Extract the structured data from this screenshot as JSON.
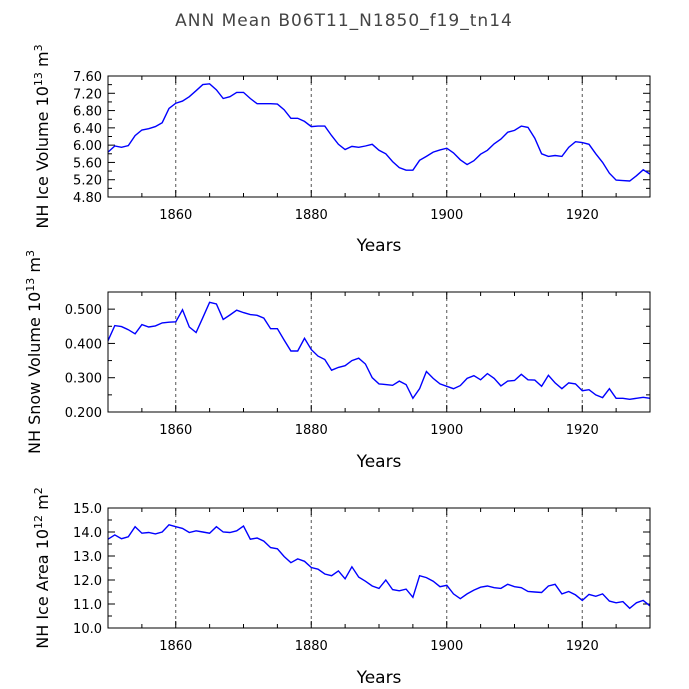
{
  "title": "ANN Mean B06T11_N1850_f19_tn14",
  "chart_data": [
    {
      "type": "line",
      "xlabel": "Years",
      "ylabel_main": "NH Ice Volume 10",
      "ylabel_sup": "13",
      "ylabel_unit": " m",
      "ylabel_unit_sup": "3",
      "xlim": [
        1850,
        1930
      ],
      "ylim": [
        4.8,
        7.6
      ],
      "xticks": [
        1860,
        1880,
        1900,
        1920
      ],
      "yticks": [
        4.8,
        5.2,
        5.6,
        6.0,
        6.4,
        6.8,
        7.2,
        7.6
      ],
      "ytick_labels": [
        "4.80",
        "5.20",
        "5.60",
        "6.00",
        "6.40",
        "6.80",
        "7.20",
        "7.60"
      ],
      "grid": "vertical dashed at major x ticks",
      "series_color": "#0000ff",
      "x": [
        1850,
        1851,
        1852,
        1853,
        1854,
        1855,
        1856,
        1857,
        1858,
        1859,
        1860,
        1861,
        1862,
        1863,
        1864,
        1865,
        1866,
        1867,
        1868,
        1869,
        1870,
        1871,
        1872,
        1873,
        1874,
        1875,
        1876,
        1877,
        1878,
        1879,
        1880,
        1881,
        1882,
        1883,
        1884,
        1885,
        1886,
        1887,
        1888,
        1889,
        1890,
        1891,
        1892,
        1893,
        1894,
        1895,
        1896,
        1897,
        1898,
        1899,
        1900,
        1901,
        1902,
        1903,
        1904,
        1905,
        1906,
        1907,
        1908,
        1909,
        1910,
        1911,
        1912,
        1913,
        1914,
        1915,
        1916,
        1917,
        1918,
        1919,
        1920,
        1921,
        1922,
        1923,
        1924,
        1925,
        1926,
        1927,
        1928,
        1929,
        1930
      ],
      "values": [
        5.84,
        5.98,
        5.95,
        5.99,
        6.22,
        6.35,
        6.38,
        6.43,
        6.52,
        6.85,
        6.97,
        7.02,
        7.12,
        7.26,
        7.4,
        7.42,
        7.28,
        7.08,
        7.12,
        7.22,
        7.22,
        7.08,
        6.96,
        6.96,
        6.96,
        6.95,
        6.82,
        6.62,
        6.62,
        6.55,
        6.43,
        6.44,
        6.44,
        6.22,
        6.02,
        5.9,
        5.97,
        5.95,
        5.98,
        6.02,
        5.88,
        5.8,
        5.62,
        5.48,
        5.42,
        5.42,
        5.65,
        5.74,
        5.84,
        5.89,
        5.93,
        5.82,
        5.66,
        5.55,
        5.64,
        5.79,
        5.88,
        6.03,
        6.14,
        6.3,
        6.34,
        6.44,
        6.41,
        6.16,
        5.8,
        5.74,
        5.76,
        5.74,
        5.95,
        6.08,
        6.06,
        6.02,
        5.8,
        5.6,
        5.35,
        5.19,
        5.18,
        5.17,
        5.29,
        5.43,
        5.33
      ]
    },
    {
      "type": "line",
      "xlabel": "Years",
      "ylabel_main": "NH Snow Volume 10",
      "ylabel_sup": "13",
      "ylabel_unit": " m",
      "ylabel_unit_sup": "3",
      "xlim": [
        1850,
        1930
      ],
      "ylim": [
        0.2,
        0.55
      ],
      "xticks": [
        1860,
        1880,
        1900,
        1920
      ],
      "yticks": [
        0.2,
        0.3,
        0.4,
        0.5
      ],
      "ytick_labels": [
        "0.200",
        "0.300",
        "0.400",
        "0.500"
      ],
      "grid": "vertical dashed at major x ticks",
      "series_color": "#0000ff",
      "x": [
        1850,
        1851,
        1852,
        1853,
        1854,
        1855,
        1856,
        1857,
        1858,
        1859,
        1860,
        1861,
        1862,
        1863,
        1864,
        1865,
        1866,
        1867,
        1868,
        1869,
        1870,
        1871,
        1872,
        1873,
        1874,
        1875,
        1876,
        1877,
        1878,
        1879,
        1880,
        1881,
        1882,
        1883,
        1884,
        1885,
        1886,
        1887,
        1888,
        1889,
        1890,
        1891,
        1892,
        1893,
        1894,
        1895,
        1896,
        1897,
        1898,
        1899,
        1900,
        1901,
        1902,
        1903,
        1904,
        1905,
        1906,
        1907,
        1908,
        1909,
        1910,
        1911,
        1912,
        1913,
        1914,
        1915,
        1916,
        1917,
        1918,
        1919,
        1920,
        1921,
        1922,
        1923,
        1924,
        1925,
        1926,
        1927,
        1928,
        1929,
        1930
      ],
      "values": [
        0.408,
        0.452,
        0.449,
        0.44,
        0.428,
        0.455,
        0.448,
        0.451,
        0.46,
        0.462,
        0.463,
        0.498,
        0.448,
        0.432,
        0.475,
        0.52,
        0.515,
        0.47,
        0.483,
        0.497,
        0.49,
        0.484,
        0.482,
        0.474,
        0.443,
        0.443,
        0.41,
        0.378,
        0.378,
        0.415,
        0.382,
        0.363,
        0.353,
        0.322,
        0.33,
        0.335,
        0.35,
        0.357,
        0.34,
        0.3,
        0.282,
        0.28,
        0.278,
        0.29,
        0.28,
        0.24,
        0.268,
        0.318,
        0.298,
        0.282,
        0.275,
        0.268,
        0.277,
        0.298,
        0.306,
        0.294,
        0.312,
        0.298,
        0.276,
        0.29,
        0.292,
        0.31,
        0.294,
        0.293,
        0.275,
        0.307,
        0.285,
        0.268,
        0.285,
        0.282,
        0.262,
        0.265,
        0.25,
        0.242,
        0.268,
        0.24,
        0.24,
        0.237,
        0.24,
        0.243,
        0.24
      ]
    },
    {
      "type": "line",
      "xlabel": "Years",
      "ylabel_main": "NH Ice Area 10",
      "ylabel_sup": "12",
      "ylabel_unit": " m",
      "ylabel_unit_sup": "2",
      "xlim": [
        1850,
        1930
      ],
      "ylim": [
        10.0,
        15.0
      ],
      "xticks": [
        1860,
        1880,
        1900,
        1920
      ],
      "yticks": [
        10.0,
        11.0,
        12.0,
        13.0,
        14.0,
        15.0
      ],
      "ytick_labels": [
        "10.0",
        "11.0",
        "12.0",
        "13.0",
        "14.0",
        "15.0"
      ],
      "grid": "vertical dashed at major x ticks",
      "series_color": "#0000ff",
      "x": [
        1850,
        1851,
        1852,
        1853,
        1854,
        1855,
        1856,
        1857,
        1858,
        1859,
        1860,
        1861,
        1862,
        1863,
        1864,
        1865,
        1866,
        1867,
        1868,
        1869,
        1870,
        1871,
        1872,
        1873,
        1874,
        1875,
        1876,
        1877,
        1878,
        1879,
        1880,
        1881,
        1882,
        1883,
        1884,
        1885,
        1886,
        1887,
        1888,
        1889,
        1890,
        1891,
        1892,
        1893,
        1894,
        1895,
        1896,
        1897,
        1898,
        1899,
        1900,
        1901,
        1902,
        1903,
        1904,
        1905,
        1906,
        1907,
        1908,
        1909,
        1910,
        1911,
        1912,
        1913,
        1914,
        1915,
        1916,
        1917,
        1918,
        1919,
        1920,
        1921,
        1922,
        1923,
        1924,
        1925,
        1926,
        1927,
        1928,
        1929,
        1930
      ],
      "values": [
        13.7,
        13.88,
        13.72,
        13.8,
        14.22,
        13.95,
        13.98,
        13.92,
        14.0,
        14.3,
        14.22,
        14.15,
        13.98,
        14.05,
        14.0,
        13.95,
        14.22,
        14.0,
        13.98,
        14.05,
        14.25,
        13.7,
        13.75,
        13.62,
        13.35,
        13.3,
        12.98,
        12.72,
        12.88,
        12.78,
        12.52,
        12.45,
        12.25,
        12.18,
        12.38,
        12.05,
        12.55,
        12.12,
        11.95,
        11.75,
        11.65,
        12.0,
        11.6,
        11.55,
        11.62,
        11.28,
        12.18,
        12.1,
        11.95,
        11.72,
        11.78,
        11.42,
        11.22,
        11.42,
        11.58,
        11.7,
        11.75,
        11.68,
        11.65,
        11.82,
        11.72,
        11.68,
        11.52,
        11.5,
        11.48,
        11.75,
        11.82,
        11.42,
        11.52,
        11.38,
        11.15,
        11.4,
        11.32,
        11.42,
        11.12,
        11.05,
        11.1,
        10.82,
        11.05,
        11.15,
        10.92
      ]
    }
  ]
}
